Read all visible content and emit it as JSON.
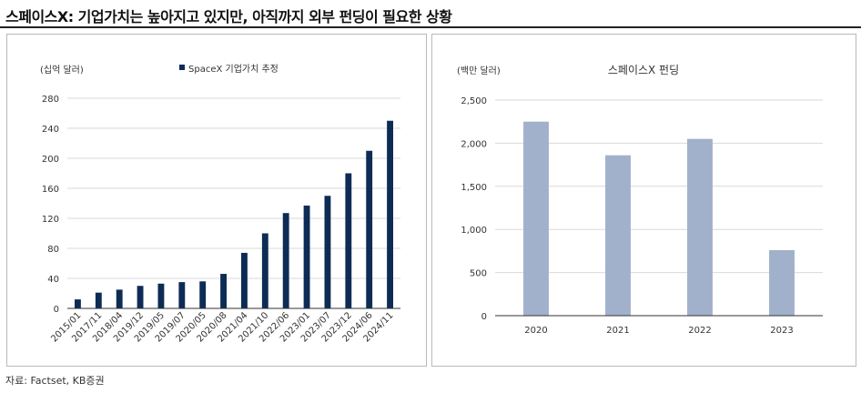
{
  "header": {
    "title": "스페이스X: 기업가치는 높아지고 있지만, 아직까지 외부 펀딩이 필요한 상황"
  },
  "footer": {
    "source": "자료: Factset, KB증권"
  },
  "colors": {
    "left_bar": "#0d2c55",
    "right_bar": "#a2b1cb",
    "grid": "#d9d9d9",
    "axis": "#333333",
    "text": "#333333"
  },
  "chart_data": [
    {
      "type": "bar",
      "title": "",
      "unit_label": "(십억 달러)",
      "xlabel": "",
      "ylabel": "",
      "ylim": [
        0,
        280
      ],
      "yticks": [
        0,
        40,
        80,
        120,
        160,
        200,
        240,
        280
      ],
      "grid": true,
      "legend": "top-center",
      "categories": [
        "2015/01",
        "2017/11",
        "2018/04",
        "2019/12",
        "2019/05",
        "2019/07",
        "2020/05",
        "2020/08",
        "2021/04",
        "2021/10",
        "2022/06",
        "2023/01",
        "2023/07",
        "2023/12",
        "2024/06",
        "2024/11"
      ],
      "series": [
        {
          "name": "SpaceX 기업가치 추정",
          "values": [
            12,
            21,
            25,
            30,
            33,
            35,
            36,
            46,
            74,
            100,
            127,
            137,
            150,
            180,
            210,
            250
          ]
        }
      ]
    },
    {
      "type": "bar",
      "title": "스페이스X 펀딩",
      "unit_label": "(백만 달러)",
      "xlabel": "",
      "ylabel": "",
      "ylim": [
        0,
        2500
      ],
      "yticks": [
        0,
        500,
        1000,
        1500,
        2000,
        2500
      ],
      "ytick_labels": [
        "0",
        "500",
        "1,000",
        "1,500",
        "2,000",
        "2,500"
      ],
      "grid": true,
      "legend": "none",
      "categories": [
        "2020",
        "2021",
        "2022",
        "2023"
      ],
      "series": [
        {
          "values": [
            2250,
            1860,
            2050,
            760
          ]
        }
      ]
    }
  ]
}
